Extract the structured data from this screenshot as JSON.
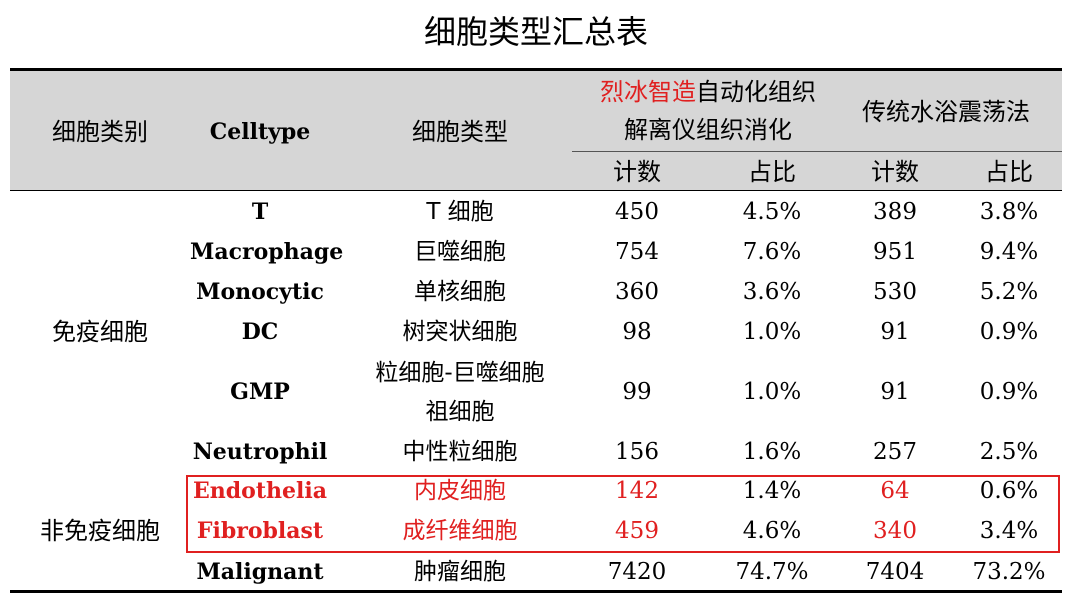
{
  "title": "细胞类型汇总表",
  "header": {
    "col_category": "细胞类别",
    "col_celltype": "Celltype",
    "col_type_cn": "细胞类型",
    "method1_brand": "烈冰智造",
    "method1_rest": "自动化组织",
    "method1_line2": "解离仪组织消化",
    "method2": "传统水浴震荡法",
    "count": "计数",
    "ratio": "占比"
  },
  "groups": {
    "immune": "免疫细胞",
    "non_immune": "非免疫细胞"
  },
  "rows": [
    {
      "en": "T",
      "cn": "T 细胞",
      "c1": "450",
      "r1": "4.5%",
      "c2": "389",
      "r2": "3.8%"
    },
    {
      "en": "Macrophage",
      "cn": "巨噬细胞",
      "c1": "754",
      "r1": "7.6%",
      "c2": "951",
      "r2": "9.4%"
    },
    {
      "en": "Monocytic",
      "cn": "单核细胞",
      "c1": "360",
      "r1": "3.6%",
      "c2": "530",
      "r2": "5.2%"
    },
    {
      "en": "DC",
      "cn": "树突状细胞",
      "c1": "98",
      "r1": "1.0%",
      "c2": "91",
      "r2": "0.9%"
    },
    {
      "en": "GMP",
      "cn": "粒细胞-巨噬细胞",
      "cn2": "祖细胞",
      "c1": "99",
      "r1": "1.0%",
      "c2": "91",
      "r2": "0.9%"
    },
    {
      "en": "Neutrophil",
      "cn": "中性粒细胞",
      "c1": "156",
      "r1": "1.6%",
      "c2": "257",
      "r2": "2.5%"
    },
    {
      "en": "Endothelia",
      "cn": "内皮细胞",
      "c1": "142",
      "r1": "1.4%",
      "c2": "64",
      "r2": "0.6%"
    },
    {
      "en": "Fibroblast",
      "cn": "成纤维细胞",
      "c1": "459",
      "r1": "4.6%",
      "c2": "340",
      "r2": "3.4%"
    },
    {
      "en": "Malignant",
      "cn": "肿瘤细胞",
      "c1": "7420",
      "r1": "74.7%",
      "c2": "7404",
      "r2": "73.2%"
    }
  ],
  "colors": {
    "highlight": "#e02020",
    "header_bg": "#d6d6d6"
  }
}
